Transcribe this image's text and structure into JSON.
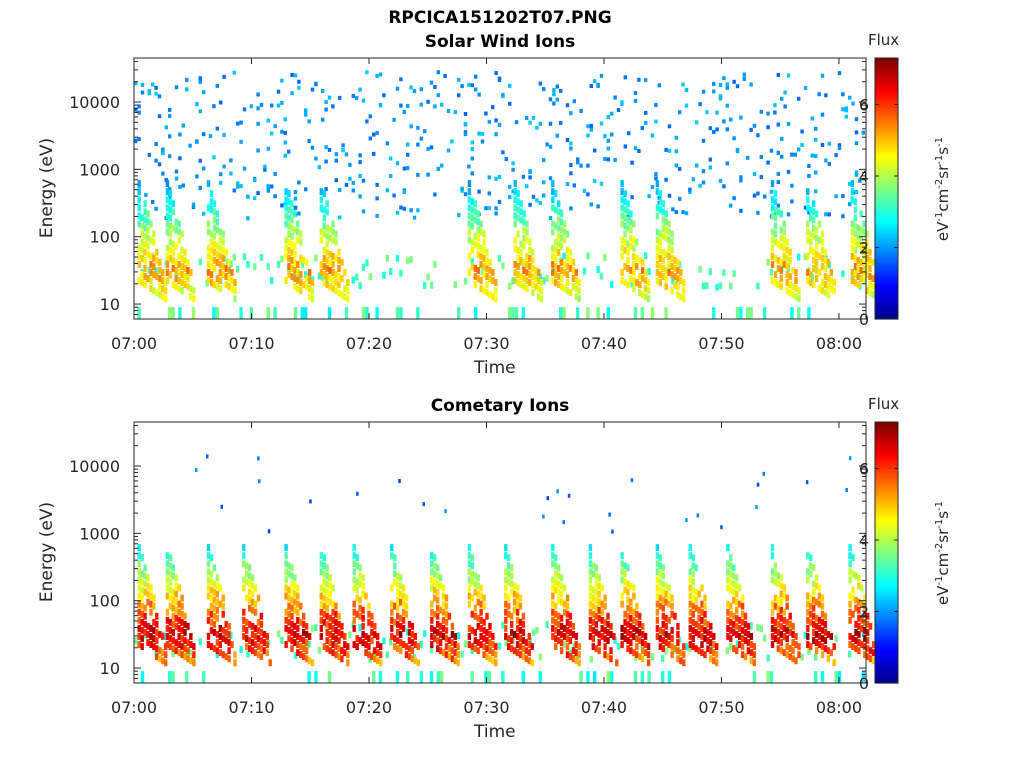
{
  "figure": {
    "title": "RPCICA151202T07.PNG"
  },
  "colormap": {
    "name": "jet",
    "stops": [
      "#00008f",
      "#0000ff",
      "#0080ff",
      "#00ffff",
      "#80ff80",
      "#ffff00",
      "#ff8000",
      "#ff0000",
      "#800000"
    ]
  },
  "chart_data": [
    {
      "type": "heatmap",
      "title": "Solar Wind Ions",
      "xlabel": "Time",
      "ylabel": "Energy (eV)",
      "x_ticks": [
        "07:00",
        "07:10",
        "07:20",
        "07:30",
        "07:40",
        "07:50",
        "08:00"
      ],
      "y_ticks": [
        "10",
        "100",
        "1000",
        "10000"
      ],
      "xlim_minutes": [
        0,
        62.3
      ],
      "ylim_eV": [
        6,
        45000
      ],
      "y_scale": "log",
      "colorbar": {
        "title": "Flux",
        "unit": "eV-1cm-2sr-1s-1",
        "ticks": [
          "0",
          "2",
          "4",
          "6"
        ],
        "range": [
          0,
          7.3
        ]
      },
      "peak_flux": 5.5,
      "low_energy_band_eV": [
        20,
        60
      ],
      "scatter_flux": 1.6,
      "scatter_energy_range_eV": [
        200,
        30000
      ],
      "burst_times_min": [
        0.3,
        2.7,
        6.2,
        12.8,
        15.8,
        28.4,
        32.3,
        35.5,
        41.4,
        44.4,
        54.2,
        57.2,
        61.0
      ]
    },
    {
      "type": "heatmap",
      "title": "Cometary Ions",
      "xlabel": "Time",
      "ylabel": "Energy (eV)",
      "x_ticks": [
        "07:00",
        "07:10",
        "07:20",
        "07:30",
        "07:40",
        "07:50",
        "08:00"
      ],
      "y_ticks": [
        "10",
        "100",
        "1000",
        "10000"
      ],
      "xlim_minutes": [
        0,
        62.3
      ],
      "ylim_eV": [
        6,
        45000
      ],
      "y_scale": "log",
      "colorbar": {
        "title": "Flux",
        "unit": "eV-1cm-2sr-1s-1",
        "ticks": [
          "0",
          "2",
          "4",
          "6"
        ],
        "range": [
          0,
          7.3
        ]
      },
      "peak_flux": 7.0,
      "low_energy_band_eV": [
        15,
        50
      ],
      "burst_times_min": [
        0.3,
        2.7,
        6.2,
        9.2,
        12.8,
        15.8,
        18.6,
        21.8,
        25.2,
        28.4,
        31.5,
        35.5,
        38.7,
        41.4,
        44.4,
        47.2,
        50.4,
        54.2,
        57.2,
        60.8
      ]
    }
  ]
}
